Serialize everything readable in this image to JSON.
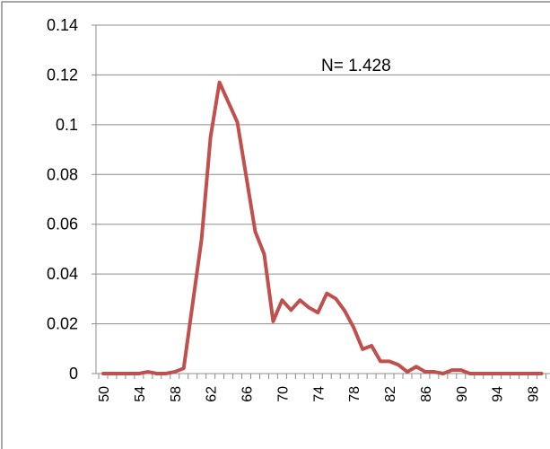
{
  "chart_data": {
    "type": "line",
    "title": "",
    "xlabel": "",
    "ylabel": "",
    "annotation": "N= 1.428",
    "ylim": [
      0,
      0.14
    ],
    "yticks": [
      "0",
      "0.02",
      "0.04",
      "0.06",
      "0.08",
      "0.1",
      "0.12",
      "0.14"
    ],
    "xlim": [
      50,
      99
    ],
    "xticks": [
      "50",
      "54",
      "58",
      "62",
      "66",
      "70",
      "74",
      "78",
      "82",
      "86",
      "90",
      "94",
      "98"
    ],
    "grid": true,
    "legend": "none",
    "colors": {
      "line": "#c0504d",
      "grid": "#8c8c8c",
      "axis": "#8c8c8c",
      "frame": "#8c8c8c"
    },
    "series": [
      {
        "x": [
          50,
          51,
          52,
          53,
          54,
          55,
          56,
          57,
          58,
          59,
          60,
          61,
          62,
          63,
          64,
          65,
          66,
          67,
          68,
          69,
          70,
          71,
          72,
          73,
          74,
          75,
          76,
          77,
          78,
          79,
          80,
          81,
          82,
          83,
          84,
          85,
          86,
          87,
          88,
          89,
          90,
          91,
          92,
          93,
          94,
          95,
          96,
          97,
          98,
          99
        ],
        "values": [
          0,
          0,
          0,
          0,
          0,
          0.0007,
          0,
          0,
          0.0007,
          0.0021,
          0.028,
          0.054,
          0.095,
          0.117,
          0.109,
          0.101,
          0.079,
          0.057,
          0.048,
          0.021,
          0.0295,
          0.0255,
          0.0295,
          0.0265,
          0.0245,
          0.0322,
          0.0301,
          0.0252,
          0.0185,
          0.0098,
          0.0112,
          0.0049,
          0.0049,
          0.0035,
          0.0007,
          0.0028,
          0.0007,
          0.0007,
          0,
          0.0014,
          0.0014,
          0,
          0,
          0,
          0,
          0,
          0,
          0,
          0,
          0
        ]
      }
    ]
  }
}
